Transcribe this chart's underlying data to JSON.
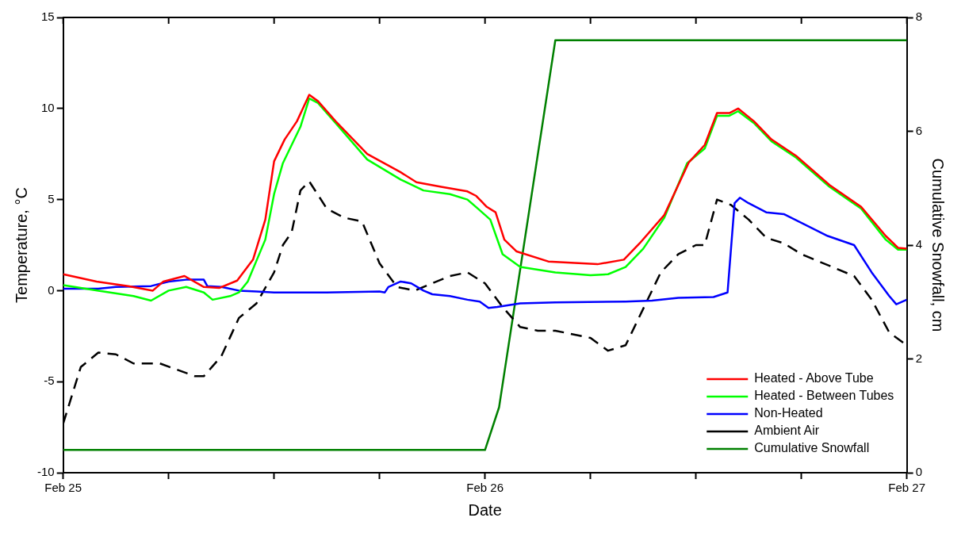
{
  "chart_data": {
    "type": "line",
    "xlabel": "Date",
    "ylabel": "Temperature, °C",
    "y2label": "Cumulative Snowfall, cm",
    "xlim": [
      "--02-25",
      "--02-27"
    ],
    "xticks": [
      {
        "value": "--02-25",
        "label": "Feb 25"
      },
      {
        "value": "--02-25T06:00",
        "label": null
      },
      {
        "value": "--02-25T12:00",
        "label": null
      },
      {
        "value": "--02-25T18:00",
        "label": null
      },
      {
        "value": "--02-26",
        "label": "Feb 26"
      },
      {
        "value": "--02-26T06:00",
        "label": null
      },
      {
        "value": "--02-26T12:00",
        "label": null
      },
      {
        "value": "--02-26T18:00",
        "label": null
      },
      {
        "value": "--02-27",
        "label": "Feb 27"
      }
    ],
    "ylim": [
      -10,
      15
    ],
    "yticks": [
      -10,
      -5,
      0,
      5,
      10,
      15
    ],
    "y2lim": [
      0,
      8
    ],
    "y2ticks": [
      0,
      2,
      4,
      6,
      8
    ],
    "grid": false,
    "legend": "bottom right",
    "marker": "none",
    "series": [
      {
        "name": "Heated - Above Tube",
        "color": "#ff0000",
        "x": [
          "--02-25T00:00",
          "--02-25T01:54",
          "--02-25T03:42",
          "--02-25T05:06",
          "--02-25T05:42",
          "--02-25T06:54",
          "--02-25T08:00",
          "--02-25T08:54",
          "--02-25T09:54",
          "--02-25T10:48",
          "--02-25T11:30",
          "--02-25T12:00",
          "--02-25T12:36",
          "--02-25T13:18",
          "--02-25T14:00",
          "--02-25T14:30",
          "--02-25T15:30",
          "--02-25T17:18",
          "--02-25T19:12",
          "--02-25T20:06",
          "--02-25T21:30",
          "--02-25T23:00",
          "--02-25T23:30",
          "--02-26T00:06",
          "--02-26T00:36",
          "--02-26T01:06",
          "--02-26T01:48",
          "--02-26T03:36",
          "--02-26T06:24",
          "--02-26T07:54",
          "--02-26T08:48",
          "--02-26T10:12",
          "--02-26T11:36",
          "--02-26T12:30",
          "--02-26T13:12",
          "--02-26T13:54",
          "--02-26T14:24",
          "--02-26T15:18",
          "--02-26T16:18",
          "--02-26T17:42",
          "--02-26T19:36",
          "--02-26T21:24",
          "--02-26T22:48",
          "--02-26T23:30",
          "--02-27T00:00"
        ],
        "values": [
          0.9,
          0.5,
          0.25,
          0,
          0.5,
          0.8,
          0.2,
          0.15,
          0.55,
          1.7,
          3.9,
          7.1,
          8.3,
          9.3,
          10.75,
          10.4,
          9.3,
          7.5,
          6.5,
          5.95,
          5.7,
          5.45,
          5.2,
          4.6,
          4.3,
          2.8,
          2.15,
          1.6,
          1.45,
          1.7,
          2.6,
          4.15,
          7.05,
          8,
          9.75,
          9.75,
          10,
          9.3,
          8.3,
          7.4,
          5.8,
          4.6,
          3,
          2.35,
          2.3
        ]
      },
      {
        "name": "Heated - Between Tubes",
        "color": "#00ff00",
        "x": [
          "--02-25T00:00",
          "--02-25T02:00",
          "--02-25T04:00",
          "--02-25T05:00",
          "--02-25T06:00",
          "--02-25T07:00",
          "--02-25T08:00",
          "--02-25T08:30",
          "--02-25T09:30",
          "--02-25T10:00",
          "--02-25T10:30",
          "--02-25T11:30",
          "--02-25T12:00",
          "--02-25T12:30",
          "--02-25T13:00",
          "--02-25T13:30",
          "--02-25T14:00",
          "--02-25T14:30",
          "--02-25T15:30",
          "--02-25T17:18",
          "--02-25T19:12",
          "--02-25T20:30",
          "--02-25T22:00",
          "--02-25T23:00",
          "--02-25T23:36",
          "--02-26T00:18",
          "--02-26T01:00",
          "--02-26T02:00",
          "--02-26T04:00",
          "--02-26T06:00",
          "--02-26T07:00",
          "--02-26T08:00",
          "--02-26T09:00",
          "--02-26T10:12",
          "--02-26T11:30",
          "--02-26T12:30",
          "--02-26T13:12",
          "--02-26T13:54",
          "--02-26T14:24",
          "--02-26T15:18",
          "--02-26T16:18",
          "--02-26T17:42",
          "--02-26T19:36",
          "--02-26T21:24",
          "--02-26T22:48",
          "--02-26T23:30",
          "--02-27T00:00"
        ],
        "values": [
          0.3,
          0,
          -0.3,
          -0.55,
          0,
          0.2,
          -0.1,
          -0.5,
          -0.3,
          -0.1,
          0.5,
          2.8,
          5.3,
          7,
          8,
          9,
          10.55,
          10.3,
          9.2,
          7.2,
          6.1,
          5.5,
          5.3,
          5,
          4.5,
          3.9,
          2,
          1.3,
          1,
          0.85,
          0.9,
          1.3,
          2.3,
          4,
          7,
          7.8,
          9.6,
          9.6,
          9.85,
          9.2,
          8.2,
          7.3,
          5.7,
          4.5,
          2.8,
          2.25,
          2.25
        ]
      },
      {
        "name": "Non-Heated",
        "color": "#0000ff",
        "x": [
          "--02-25T00:00",
          "--02-25T02:00",
          "--02-25T03:00",
          "--02-25T05:00",
          "--02-25T06:00",
          "--02-25T07:00",
          "--02-25T08:00",
          "--02-25T08:12",
          "--02-25T09:00",
          "--02-25T10:00",
          "--02-25T11:00",
          "--02-25T12:00",
          "--02-25T15:00",
          "--02-25T18:00",
          "--02-25T18:18",
          "--02-25T18:30",
          "--02-25T19:12",
          "--02-25T19:48",
          "--02-25T20:30",
          "--02-25T21:00",
          "--02-25T22:00",
          "--02-25T23:00",
          "--02-25T23:42",
          "--02-26T00:12",
          "--02-26T00:42",
          "--02-26T02:00",
          "--02-26T04:00",
          "--02-26T08:00",
          "--02-26T09:30",
          "--02-26T11:00",
          "--02-26T13:00",
          "--02-26T13:48",
          "--02-26T14:12",
          "--02-26T14:30",
          "--02-26T15:00",
          "--02-26T16:00",
          "--02-26T17:00",
          "--02-26T19:30",
          "--02-26T21:00",
          "--02-26T22:00",
          "--02-26T23:00",
          "--02-26T23:24",
          "--02-27T00:00"
        ],
        "values": [
          0.1,
          0.1,
          0.2,
          0.25,
          0.5,
          0.6,
          0.6,
          0.25,
          0.2,
          0,
          -0.05,
          -0.1,
          -0.1,
          -0.05,
          -0.1,
          0.2,
          0.5,
          0.4,
          0,
          -0.2,
          -0.3,
          -0.5,
          -0.6,
          -0.95,
          -0.9,
          -0.7,
          -0.65,
          -0.6,
          -0.55,
          -0.4,
          -0.35,
          -0.1,
          4.8,
          5.1,
          4.8,
          4.3,
          4.2,
          3,
          2.5,
          1,
          -0.3,
          -0.75,
          -0.5
        ]
      },
      {
        "name": "Ambient Air",
        "color": "#000000",
        "line_style": "dashed",
        "x": [
          "--02-25T00:00",
          "--02-25T01:00",
          "--02-25T02:00",
          "--02-25T03:00",
          "--02-25T04:00",
          "--02-25T05:30",
          "--02-25T07:30",
          "--02-25T08:00",
          "--02-25T09:00",
          "--02-25T10:00",
          "--02-25T11:00",
          "--02-25T12:00",
          "--02-25T12:30",
          "--02-25T13:00",
          "--02-25T13:30",
          "--02-25T14:00",
          "--02-25T15:00",
          "--02-25T16:00",
          "--02-25T17:00",
          "--02-25T18:00",
          "--02-25T19:00",
          "--02-25T20:00",
          "--02-25T21:00",
          "--02-25T22:00",
          "--02-25T23:00",
          "--02-26T00:00",
          "--02-26T01:00",
          "--02-26T02:00",
          "--02-26T03:00",
          "--02-26T04:00",
          "--02-26T06:00",
          "--02-26T07:00",
          "--02-26T08:00",
          "--02-26T09:00",
          "--02-26T10:00",
          "--02-26T11:00",
          "--02-26T12:00",
          "--02-26T12:30",
          "--02-26T13:12",
          "--02-26T14:00",
          "--02-26T15:00",
          "--02-26T16:00",
          "--02-26T17:00",
          "--02-26T18:00",
          "--02-26T20:00",
          "--02-26T21:00",
          "--02-26T22:00",
          "--02-26T23:00",
          "--02-27T00:00"
        ],
        "values": [
          -7.3,
          -4.2,
          -3.4,
          -3.5,
          -4,
          -4,
          -4.7,
          -4.7,
          -3.6,
          -1.5,
          -0.7,
          1,
          2.5,
          3.2,
          5.5,
          6,
          4.5,
          4,
          3.8,
          1.5,
          0.2,
          0,
          0.4,
          0.8,
          1,
          0.4,
          -0.9,
          -2,
          -2.2,
          -2.2,
          -2.6,
          -3.3,
          -3,
          -1,
          1,
          2,
          2.5,
          2.5,
          5,
          4.7,
          3.9,
          2.9,
          2.6,
          2,
          1.2,
          0.8,
          -0.5,
          -2.3,
          -3
        ]
      },
      {
        "name": "Cumulative Snowfall",
        "color": "#008000",
        "axis": "y2",
        "x": [
          "--02-25T00:00",
          "--02-26T00:00",
          "--02-26T00:48",
          "--02-26T04:00",
          "--02-27T00:00"
        ],
        "values": [
          0.4,
          0.4,
          1.15,
          7.6,
          7.6
        ]
      }
    ]
  }
}
